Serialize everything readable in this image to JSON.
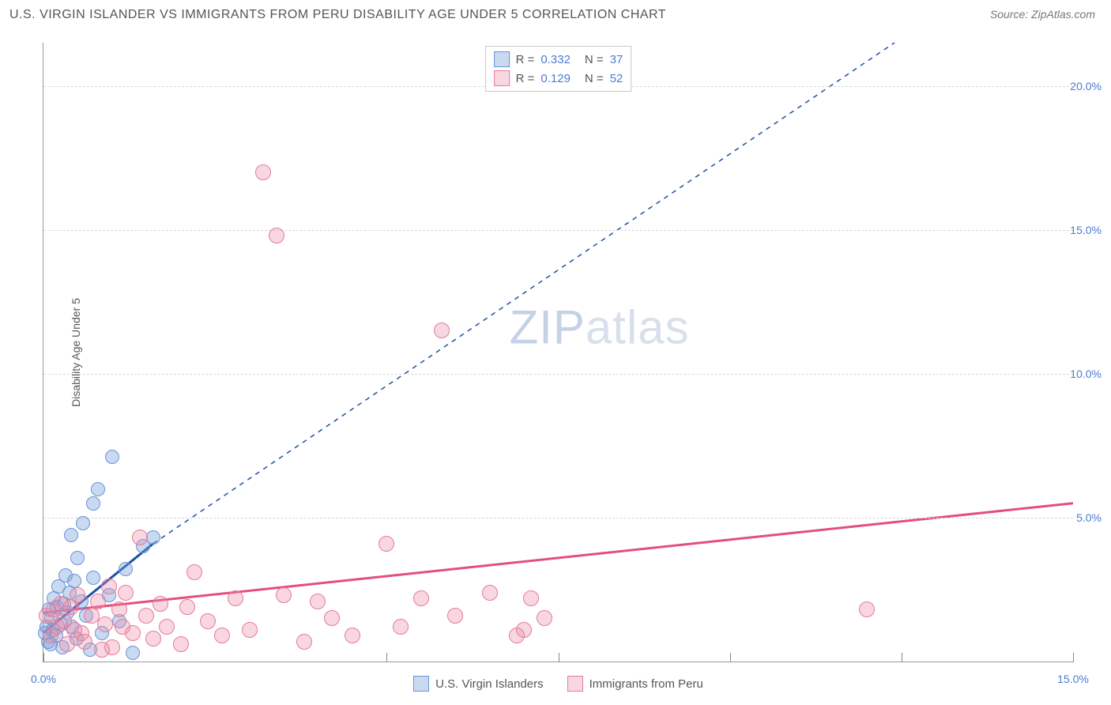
{
  "title": "U.S. VIRGIN ISLANDER VS IMMIGRANTS FROM PERU DISABILITY AGE UNDER 5 CORRELATION CHART",
  "source": "Source: ZipAtlas.com",
  "watermark_a": "ZIP",
  "watermark_b": "atlas",
  "chart": {
    "type": "scatter",
    "y_axis_title": "Disability Age Under 5",
    "xlim": [
      0,
      15
    ],
    "ylim": [
      0,
      21.5
    ],
    "ytick_values": [
      5.0,
      10.0,
      15.0,
      20.0
    ],
    "ytick_labels": [
      "5.0%",
      "10.0%",
      "15.0%",
      "20.0%"
    ],
    "xtick_values": [
      0,
      5,
      7.5,
      10,
      12.5,
      15
    ],
    "xtick_label_left": "0.0%",
    "xtick_label_right": "15.0%",
    "grid_color": "#d8d8d8",
    "axis_color": "#999999",
    "background_color": "#ffffff",
    "tick_label_color": "#4a7bd4",
    "series": [
      {
        "name": "U.S. Virgin Islanders",
        "color_fill": "rgba(120,160,220,0.40)",
        "color_stroke": "#6a94d4",
        "marker_radius": 9,
        "R": "0.332",
        "N": "37",
        "trend": {
          "x1": 0,
          "y1": 1.0,
          "x2": 1.6,
          "y2": 4.1,
          "color": "#1d4fa8",
          "width": 3,
          "dash_extend_to_x": 12.4,
          "dash_extend_to_y": 21.5
        },
        "points": [
          [
            0.02,
            1.0
          ],
          [
            0.05,
            1.2
          ],
          [
            0.07,
            0.7
          ],
          [
            0.08,
            1.8
          ],
          [
            0.1,
            0.6
          ],
          [
            0.12,
            1.5
          ],
          [
            0.14,
            1.1
          ],
          [
            0.15,
            2.2
          ],
          [
            0.18,
            0.9
          ],
          [
            0.2,
            1.9
          ],
          [
            0.22,
            2.6
          ],
          [
            0.25,
            1.3
          ],
          [
            0.28,
            0.5
          ],
          [
            0.3,
            2.0
          ],
          [
            0.32,
            3.0
          ],
          [
            0.35,
            1.7
          ],
          [
            0.38,
            2.4
          ],
          [
            0.4,
            4.4
          ],
          [
            0.42,
            1.2
          ],
          [
            0.45,
            2.8
          ],
          [
            0.48,
            0.8
          ],
          [
            0.5,
            3.6
          ],
          [
            0.55,
            2.1
          ],
          [
            0.58,
            4.8
          ],
          [
            0.62,
            1.6
          ],
          [
            0.68,
            0.4
          ],
          [
            0.72,
            2.9
          ],
          [
            0.8,
            6.0
          ],
          [
            0.85,
            1.0
          ],
          [
            0.72,
            5.5
          ],
          [
            0.95,
            2.3
          ],
          [
            1.0,
            7.1
          ],
          [
            1.1,
            1.4
          ],
          [
            1.2,
            3.2
          ],
          [
            1.3,
            0.3
          ],
          [
            1.45,
            4.0
          ],
          [
            1.6,
            4.3
          ]
        ]
      },
      {
        "name": "Immigrants from Peru",
        "color_fill": "rgba(235,140,165,0.35)",
        "color_stroke": "#e77a9a",
        "marker_radius": 10,
        "R": "0.129",
        "N": "52",
        "trend": {
          "x1": 0,
          "y1": 1.7,
          "x2": 15,
          "y2": 5.5,
          "color": "#e34f7c",
          "width": 3
        },
        "points": [
          [
            0.05,
            1.6
          ],
          [
            0.1,
            0.9
          ],
          [
            0.15,
            1.8
          ],
          [
            0.2,
            1.2
          ],
          [
            0.25,
            2.0
          ],
          [
            0.3,
            1.4
          ],
          [
            0.35,
            0.6
          ],
          [
            0.4,
            1.9
          ],
          [
            0.45,
            1.1
          ],
          [
            0.5,
            2.3
          ],
          [
            0.6,
            0.7
          ],
          [
            0.7,
            1.6
          ],
          [
            0.8,
            2.1
          ],
          [
            0.9,
            1.3
          ],
          [
            1.0,
            0.5
          ],
          [
            1.1,
            1.8
          ],
          [
            1.2,
            2.4
          ],
          [
            1.3,
            1.0
          ],
          [
            1.4,
            4.3
          ],
          [
            1.5,
            1.6
          ],
          [
            1.6,
            0.8
          ],
          [
            1.7,
            2.0
          ],
          [
            1.8,
            1.2
          ],
          [
            2.0,
            0.6
          ],
          [
            2.2,
            3.1
          ],
          [
            2.4,
            1.4
          ],
          [
            2.6,
            0.9
          ],
          [
            2.8,
            2.2
          ],
          [
            3.0,
            1.1
          ],
          [
            3.2,
            17.0
          ],
          [
            3.4,
            14.8
          ],
          [
            3.5,
            2.3
          ],
          [
            3.8,
            0.7
          ],
          [
            4.0,
            2.1
          ],
          [
            4.2,
            1.5
          ],
          [
            4.5,
            0.9
          ],
          [
            5.0,
            4.1
          ],
          [
            5.2,
            1.2
          ],
          [
            5.5,
            2.2
          ],
          [
            5.8,
            11.5
          ],
          [
            6.0,
            1.6
          ],
          [
            6.5,
            2.4
          ],
          [
            7.0,
            1.1
          ],
          [
            7.1,
            2.2
          ],
          [
            7.3,
            1.5
          ],
          [
            6.9,
            0.9
          ],
          [
            12.0,
            1.8
          ],
          [
            2.1,
            1.9
          ],
          [
            1.15,
            1.2
          ],
          [
            0.85,
            0.4
          ],
          [
            0.55,
            1.0
          ],
          [
            0.95,
            2.6
          ]
        ]
      }
    ],
    "legend_top": {
      "r_label": "R =",
      "n_label": "N ="
    }
  }
}
